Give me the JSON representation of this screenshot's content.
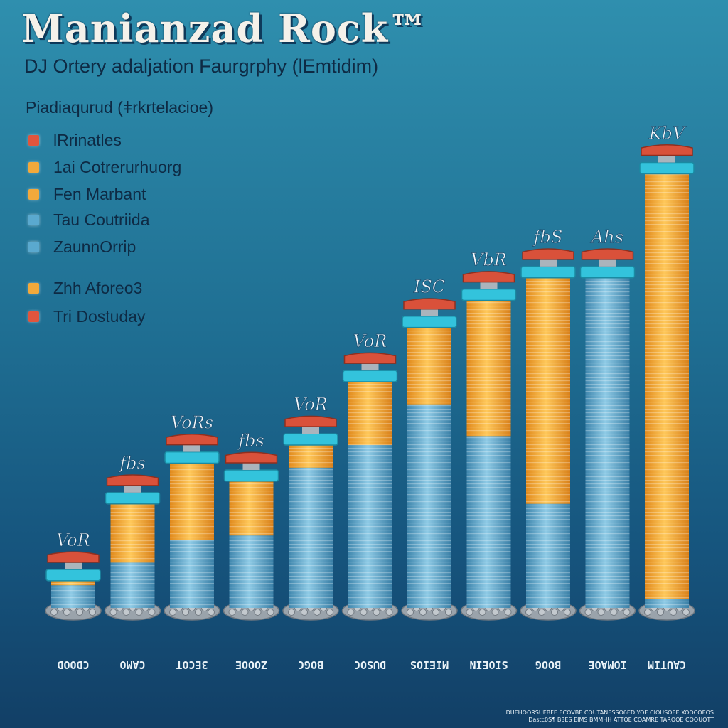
{
  "title": "Manianzad Rock™",
  "subtitle": "DJ Ortery adaljation Faurgrphy (lEmtidim)",
  "legend_title": "Piadiaqurud (ǂrkrtelacioe)",
  "legend": [
    {
      "label": "lRrinatles",
      "color": "#e0553d"
    },
    {
      "label": "1ai Cotrerurhuorg",
      "color": "#f2a93b"
    },
    {
      "label": "Fen Marbant",
      "color": "#f2a93b"
    },
    {
      "label": "Tau Coutriida",
      "color": "#5aa9cf"
    },
    {
      "label": "ZaunnOrrip",
      "color": "#5aa9cf"
    },
    {
      "label": "Zhh Aforeo3",
      "color": "#f2a93b"
    },
    {
      "label": "Tri Dostuday",
      "color": "#e0553d"
    }
  ],
  "chart_data": {
    "type": "bar",
    "categories": [
      "CDOOD",
      "CAMO",
      "3ECOT",
      "ZOOOE",
      "BOGC",
      "DUSOC",
      "MIEIOS",
      "SIOEIN",
      "BOOG",
      "IOMAOE",
      "CAUTIM"
    ],
    "series": [
      {
        "name": "",
        "values": [
          0.5,
          1.0,
          1.5,
          1.6,
          3.1,
          3.6,
          4.5,
          3.8,
          2.3,
          7.3,
          0.2
        ]
      },
      {
        "name": "",
        "values": [
          0.1,
          1.3,
          1.7,
          1.2,
          0.5,
          1.4,
          1.7,
          3.0,
          5.0,
          0.0,
          9.4
        ]
      },
      {
        "name": "",
        "values": [
          0.3,
          0.3,
          0.3,
          0.3,
          0.3,
          0.3,
          0.3,
          0.3,
          0.3,
          0.3,
          0.3
        ]
      },
      {
        "name": "",
        "values": [
          0.25,
          0.25,
          0.25,
          0.25,
          0.25,
          0.25,
          0.25,
          0.25,
          0.25,
          0.25,
          0.25
        ]
      }
    ],
    "cap_labels": [
      "VoR",
      "fbs",
      "VoRs",
      "fbs",
      "VoR",
      "VoR",
      "ISC",
      "VbR",
      "fbS",
      "Ahs",
      "KbV"
    ],
    "colors": {
      "blue": "#5aa9cf",
      "orange": "#f3a73a",
      "red": "#d9513a",
      "cyan": "#33c3dc",
      "rock": "#9aa3ab"
    },
    "ylim": [
      0,
      12.5
    ],
    "grid": false
  },
  "footer": [
    "DUEHOORSUEBFE ECOVBE COUTANESSO6ED YOE CIOUSOEE XOOCOEOS",
    "Dastc0S¶ B3ES EIMS BMMHH ATTOE COAMRE TAROOE COOUOTT"
  ]
}
